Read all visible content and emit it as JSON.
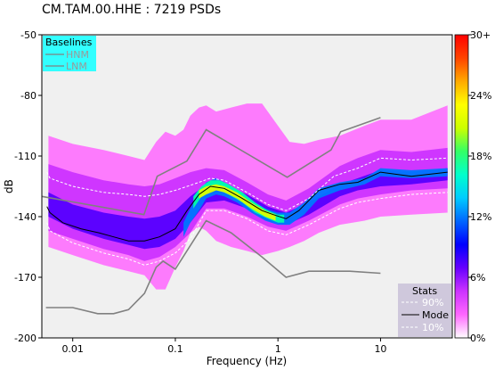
{
  "chart_data": {
    "type": "heatmap",
    "title": "CM.TAM.00.HHE : 7219 PSDs",
    "xlabel": "Frequency (Hz)",
    "ylabel": "dB",
    "x_scale": "log",
    "xlim": [
      0.005,
      50
    ],
    "ylim": [
      -200,
      -50
    ],
    "x_ticks": [
      0.01,
      0.1,
      1,
      10
    ],
    "x_tick_labels": [
      "0.01",
      "0.1",
      "1",
      "10"
    ],
    "y_ticks": [
      -50,
      -80,
      -110,
      -140,
      -170,
      -200
    ],
    "y_tick_labels": [
      "-50",
      "-80",
      "-110",
      "-140",
      "-170",
      "-200"
    ],
    "colorbar": {
      "ticks": [
        0,
        6,
        12,
        18,
        24,
        30
      ],
      "tick_labels": [
        "0%",
        "6%",
        "12%",
        "18%",
        "24%",
        "30+"
      ],
      "colors": [
        "#ffffff",
        "#ff66ff",
        "#cc33ff",
        "#6600ff",
        "#0000ff",
        "#0066ff",
        "#00ccff",
        "#00ffcc",
        "#33ff66",
        "#ccff00",
        "#ffff00",
        "#ffaa00",
        "#ff4400",
        "#ff0000"
      ]
    },
    "baselines_legend": {
      "title": "Baselines",
      "entries": [
        {
          "label": "HNM",
          "color": "#808080"
        },
        {
          "label": "LNM",
          "color": "#808080"
        }
      ],
      "placement": "top-left"
    },
    "stats_legend": {
      "title": "Stats",
      "entries": [
        {
          "label": "90%",
          "style": "dashed",
          "color": "#ffffff"
        },
        {
          "label": "Mode",
          "style": "solid",
          "color": "#000000"
        },
        {
          "label": "10%",
          "style": "dashed",
          "color": "#ffffff"
        }
      ],
      "placement": "bottom-right"
    },
    "series": [
      {
        "name": "HNM",
        "style": "solid",
        "color": "#808080",
        "x": [
          0.005,
          0.0495,
          0.0666,
          0.1295,
          0.2,
          1.23,
          3.29,
          4.08,
          10
        ],
        "y": [
          -130,
          -139,
          -120,
          -112.5,
          -97,
          -120.5,
          -107,
          -98,
          -91
        ]
      },
      {
        "name": "LNM",
        "style": "solid",
        "color": "#808080",
        "x": [
          0.00548,
          0.01,
          0.0175,
          0.025,
          0.035,
          0.05,
          0.065,
          0.076,
          0.1,
          0.2,
          0.35,
          0.7,
          1.2,
          2,
          5,
          10
        ],
        "y": [
          -185,
          -185,
          -188,
          -188,
          -186,
          -178,
          -165,
          -162,
          -166,
          -142,
          -148,
          -160,
          -170,
          -167,
          -167,
          -168
        ]
      },
      {
        "name": "Mode",
        "style": "solid",
        "color": "#000000",
        "x": [
          0.0056,
          0.006,
          0.008,
          0.012,
          0.018,
          0.025,
          0.035,
          0.05,
          0.07,
          0.1,
          0.13,
          0.17,
          0.22,
          0.3,
          0.45,
          0.7,
          0.9,
          1.2,
          1.6,
          2.5,
          4,
          6,
          10,
          20,
          45
        ],
        "y": [
          -135,
          -138,
          -143,
          -146,
          -148,
          -150,
          -152,
          -152,
          -150,
          -146,
          -137,
          -129,
          -125,
          -126,
          -131,
          -137,
          -139,
          -141,
          -137,
          -127,
          -124,
          -123,
          -118,
          -120,
          -118
        ]
      },
      {
        "name": "90%",
        "style": "dashed",
        "color": "#ffffff",
        "x": [
          0.0056,
          0.006,
          0.01,
          0.02,
          0.035,
          0.05,
          0.07,
          0.1,
          0.15,
          0.22,
          0.3,
          0.5,
          0.8,
          1.2,
          2,
          3.5,
          6,
          10,
          20,
          45
        ],
        "y": [
          -118,
          -121,
          -125,
          -128,
          -129,
          -130,
          -129,
          -127,
          -124,
          -121,
          -122,
          -128,
          -134,
          -137,
          -131,
          -120,
          -116,
          -111,
          -112,
          -111
        ]
      },
      {
        "name": "10%",
        "style": "dashed",
        "color": "#ffffff",
        "x": [
          0.0056,
          0.006,
          0.01,
          0.02,
          0.035,
          0.05,
          0.07,
          0.1,
          0.14,
          0.2,
          0.3,
          0.5,
          0.8,
          1.2,
          2,
          4,
          6,
          10,
          20,
          45
        ],
        "y": [
          -143,
          -147,
          -153,
          -158,
          -161,
          -164,
          -162,
          -158,
          -151,
          -137,
          -137,
          -141,
          -147,
          -149,
          -144,
          -136,
          -133,
          -131,
          -129,
          -128
        ]
      }
    ],
    "density_bands": [
      {
        "x": [
          0.0058,
          0.01,
          0.02,
          0.035,
          0.05,
          0.065,
          0.08,
          0.1,
          0.12,
          0.14,
          0.17,
          0.2,
          0.25,
          0.35,
          0.5,
          0.7,
          1,
          1.3,
          1.8,
          2.5,
          4,
          7,
          10,
          20,
          45
        ],
        "upper": [
          -100,
          -104,
          -107,
          -110,
          -112,
          -103,
          -98,
          -100,
          -97,
          -90,
          -86,
          -85,
          -88,
          -86,
          -84,
          -84,
          -95,
          -103,
          -104,
          -102,
          -100,
          -95,
          -92,
          -92,
          -85
        ],
        "lower": [
          -155,
          -159,
          -164,
          -167,
          -169,
          -176,
          -176,
          -165,
          -157,
          -148,
          -145,
          -147,
          -152,
          -155,
          -157,
          -159,
          -157,
          -155,
          -152,
          -148,
          -144,
          -142,
          -140,
          -139,
          -138
        ]
      },
      {
        "x": [
          0.0058,
          0.01,
          0.02,
          0.035,
          0.05,
          0.07,
          0.1,
          0.14,
          0.2,
          0.3,
          0.5,
          0.8,
          1.2,
          2,
          4,
          6,
          10,
          20,
          45
        ],
        "upper": [
          -114,
          -118,
          -122,
          -124,
          -125,
          -124,
          -121,
          -118,
          -116,
          -117,
          -123,
          -129,
          -132,
          -126,
          -115,
          -111,
          -107,
          -108,
          -106
        ],
        "lower": [
          -147,
          -151,
          -156,
          -159,
          -162,
          -160,
          -155,
          -148,
          -136,
          -136,
          -140,
          -145,
          -147,
          -142,
          -134,
          -131,
          -129,
          -127,
          -126
        ]
      },
      {
        "x": [
          0.0058,
          0.01,
          0.02,
          0.035,
          0.05,
          0.07,
          0.1,
          0.14,
          0.2,
          0.3,
          0.5,
          0.8,
          1.2,
          2,
          4,
          6,
          10,
          20,
          45
        ],
        "upper": [
          -128,
          -134,
          -138,
          -140,
          -141,
          -140,
          -137,
          -130,
          -124,
          -124,
          -129,
          -135,
          -138,
          -133,
          -124,
          -121,
          -117,
          -118,
          -116
        ],
        "lower": [
          -140,
          -146,
          -151,
          -154,
          -156,
          -155,
          -151,
          -143,
          -133,
          -132,
          -136,
          -142,
          -144,
          -139,
          -130,
          -127,
          -125,
          -124,
          -122
        ]
      },
      {
        "x": [
          0.12,
          0.14,
          0.17,
          0.2,
          0.25,
          0.3,
          0.4,
          0.55,
          0.75,
          1,
          1.3,
          1.8,
          2.5,
          4,
          7,
          10,
          20,
          45
        ],
        "upper": [
          -143,
          -136,
          -128,
          -123,
          -121,
          -123,
          -127,
          -132,
          -136,
          -138,
          -138,
          -133,
          -126,
          -123,
          -121,
          -116,
          -117,
          -116
        ],
        "lower": [
          -150,
          -143,
          -137,
          -131,
          -129,
          -130,
          -133,
          -138,
          -142,
          -144,
          -144,
          -139,
          -131,
          -127,
          -124,
          -120,
          -121,
          -120
        ]
      },
      {
        "x": [
          0.15,
          0.18,
          0.22,
          0.27,
          0.33,
          0.45,
          0.6,
          0.8,
          1,
          1.15
        ],
        "upper": [
          -130,
          -125,
          -122,
          -122,
          -124,
          -128,
          -133,
          -137,
          -139,
          -139
        ],
        "lower": [
          -136,
          -130,
          -127,
          -127,
          -129,
          -133,
          -138,
          -141,
          -143,
          -143
        ]
      },
      {
        "x": [
          0.17,
          0.2,
          0.25,
          0.3,
          0.4,
          0.55,
          0.75,
          0.95
        ],
        "upper": [
          -127,
          -125,
          -124,
          -125,
          -128,
          -133,
          -137,
          -139
        ],
        "lower": [
          -131,
          -129,
          -127,
          -128,
          -131,
          -136,
          -140,
          -142
        ]
      }
    ]
  }
}
